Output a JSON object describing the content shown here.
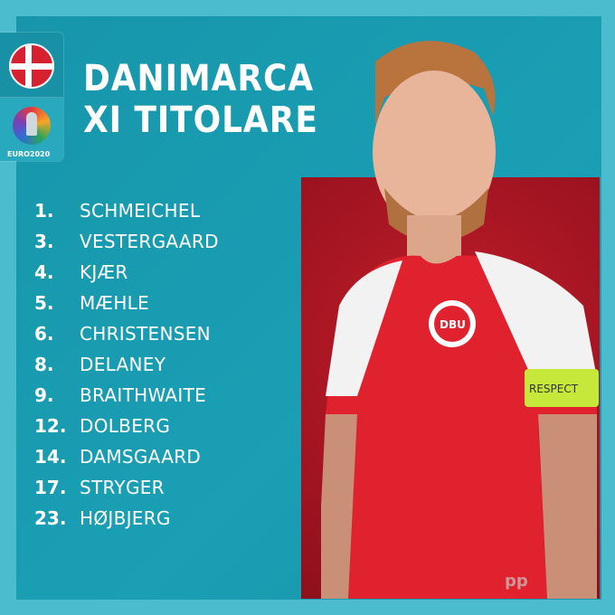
{
  "header": {
    "title_line1": "DANIMARCA",
    "title_line2": "XI TITOLARE"
  },
  "badge": {
    "flag": "denmark-flag-icon",
    "logo": "euro2020-logo",
    "logo_text": "EURO2020"
  },
  "lineup": [
    {
      "number": "1.",
      "name": "SCHMEICHEL"
    },
    {
      "number": "3.",
      "name": "VESTERGAARD"
    },
    {
      "number": "4.",
      "name": "KJÆR"
    },
    {
      "number": "5.",
      "name": "MÆHLE"
    },
    {
      "number": "6.",
      "name": "CHRISTENSEN"
    },
    {
      "number": "8.",
      "name": "DELANEY"
    },
    {
      "number": "9.",
      "name": "BRAITHWAITE"
    },
    {
      "number": "12.",
      "name": "DOLBERG"
    },
    {
      "number": "14.",
      "name": "DAMSGAARD"
    },
    {
      "number": "17.",
      "name": "STRYGER"
    },
    {
      "number": "23.",
      "name": "HØJBJERG"
    }
  ],
  "photo": {
    "armband_text": "RESPECT",
    "crest_text": "DBU"
  },
  "watermark": "pp",
  "colors": {
    "background": "#4bbccd",
    "panel": "#1a9bb0",
    "photo_bg": "#b01826",
    "jersey": "#e0222e"
  }
}
